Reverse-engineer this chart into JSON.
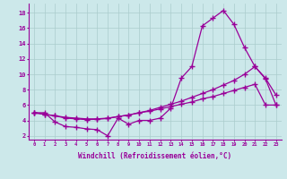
{
  "xlabel": "Windchill (Refroidissement éolien,°C)",
  "background_color": "#cce8ea",
  "line_color": "#990099",
  "grid_color": "#aacccc",
  "x_ticks": [
    0,
    1,
    2,
    3,
    4,
    5,
    6,
    7,
    8,
    9,
    10,
    11,
    12,
    13,
    14,
    15,
    16,
    17,
    18,
    19,
    20,
    21,
    22,
    23
  ],
  "y_ticks": [
    2,
    4,
    6,
    8,
    10,
    12,
    14,
    16,
    18
  ],
  "ylim": [
    1.5,
    19.2
  ],
  "xlim": [
    -0.5,
    23.5
  ],
  "series1_x": [
    0,
    1,
    2,
    3,
    4,
    5,
    6,
    7,
    8,
    9,
    10,
    11,
    12,
    13,
    14,
    15,
    16,
    17,
    18,
    19,
    20,
    21,
    22,
    23
  ],
  "series1_y": [
    5.0,
    5.0,
    3.8,
    3.2,
    3.1,
    2.9,
    2.8,
    2.0,
    4.3,
    3.5,
    4.0,
    4.0,
    4.3,
    5.6,
    9.5,
    11.0,
    16.3,
    17.3,
    18.3,
    16.5,
    13.5,
    11.0,
    9.5,
    7.3
  ],
  "series2_x": [
    0,
    1,
    2,
    3,
    4,
    5,
    6,
    7,
    8,
    9,
    10,
    11,
    12,
    13,
    14,
    15,
    16,
    17,
    18,
    19,
    20,
    21,
    22,
    23
  ],
  "series2_y": [
    5.0,
    4.8,
    4.6,
    4.3,
    4.2,
    4.1,
    4.15,
    4.25,
    4.5,
    4.7,
    5.0,
    5.3,
    5.7,
    6.1,
    6.5,
    7.0,
    7.5,
    8.0,
    8.6,
    9.2,
    10.0,
    11.0,
    9.4,
    6.0
  ],
  "series3_x": [
    0,
    1,
    2,
    3,
    4,
    5,
    6,
    7,
    8,
    9,
    10,
    11,
    12,
    13,
    14,
    15,
    16,
    17,
    18,
    19,
    20,
    21,
    22,
    23
  ],
  "series3_y": [
    5.0,
    4.8,
    4.6,
    4.4,
    4.3,
    4.2,
    4.2,
    4.3,
    4.5,
    4.7,
    5.0,
    5.2,
    5.5,
    5.8,
    6.1,
    6.4,
    6.8,
    7.1,
    7.5,
    7.9,
    8.3,
    8.7,
    6.0,
    6.0
  ]
}
